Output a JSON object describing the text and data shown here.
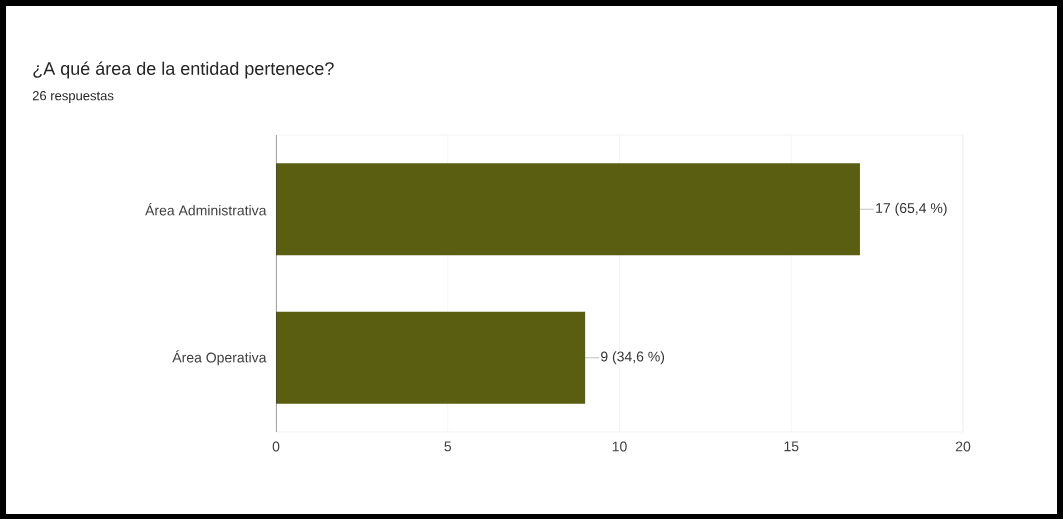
{
  "chart_data": {
    "type": "bar",
    "orientation": "horizontal",
    "title": "¿A qué área de la entidad pertenece?",
    "subtitle": "26 respuestas",
    "categories": [
      "Área Administrativa",
      "Área Operativa"
    ],
    "values": [
      17,
      9
    ],
    "value_labels": [
      "17 (65,4 %)",
      "9 (34,6 %)"
    ],
    "color": "#5a5e11",
    "xlim": [
      0,
      20
    ],
    "xticks": [
      0,
      5,
      10,
      15,
      20
    ],
    "grid": "x"
  }
}
